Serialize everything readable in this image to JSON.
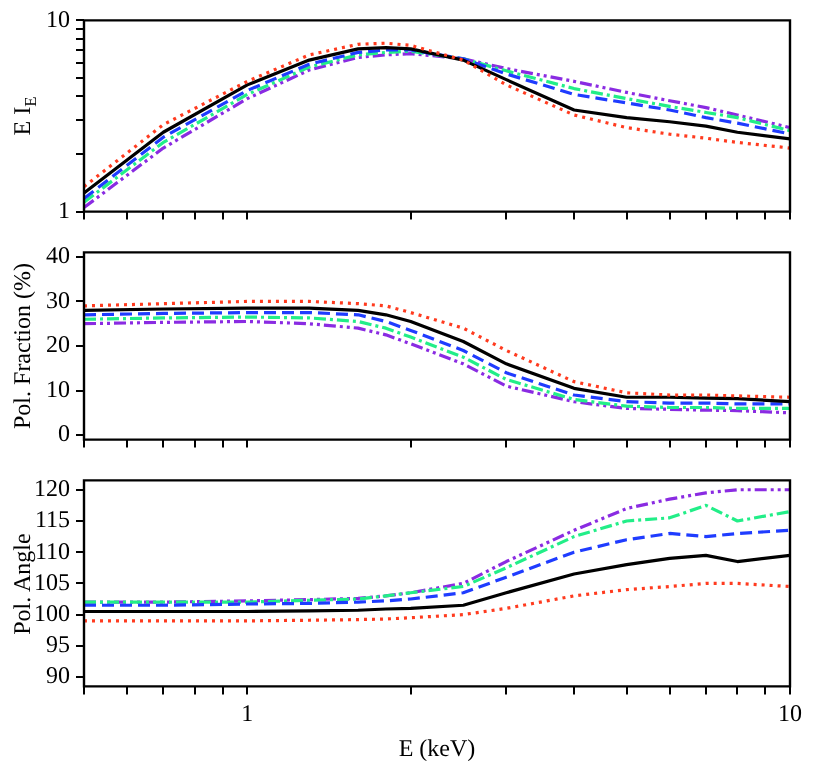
{
  "chart_data": [
    {
      "type": "line",
      "ylabel": "E I$_{E}$",
      "log": "xy",
      "tick_labels": "y",
      "x": [
        0.5,
        0.7,
        1,
        1.3,
        1.6,
        1.8,
        2,
        2.5,
        3,
        4,
        5,
        6,
        7,
        8,
        10
      ],
      "xlim": [
        0.5,
        10
      ],
      "xticks": [
        {
          "value": 0.5,
          "label": null
        },
        {
          "value": 0.6,
          "label": null
        },
        {
          "value": 0.7,
          "label": null
        },
        {
          "value": 0.8,
          "label": null
        },
        {
          "value": 0.9,
          "label": null
        },
        {
          "value": 1,
          "label": null
        },
        {
          "value": 2,
          "label": null
        },
        {
          "value": 3,
          "label": null
        },
        {
          "value": 4,
          "label": null
        },
        {
          "value": 5,
          "label": null
        },
        {
          "value": 6,
          "label": null
        },
        {
          "value": 7,
          "label": null
        },
        {
          "value": 8,
          "label": null
        },
        {
          "value": 9,
          "label": null
        },
        {
          "value": 10,
          "label": null
        }
      ],
      "ylim": [
        1,
        10
      ],
      "yticks": [
        1,
        {
          "value": 2,
          "label": null
        },
        {
          "value": 3,
          "label": null
        },
        {
          "value": 4,
          "label": null
        },
        {
          "value": 5,
          "label": null
        },
        {
          "value": 6,
          "label": null
        },
        {
          "value": 7,
          "label": null
        },
        {
          "value": 8,
          "label": null
        },
        {
          "value": 9,
          "label": null
        },
        10
      ],
      "series": [
        {
          "color": "#ff3b1f",
          "line_style": "dotted",
          "values": [
            1.35,
            2.85,
            4.8,
            6.6,
            7.5,
            7.6,
            7.4,
            6.2,
            4.6,
            3.2,
            2.75,
            2.54,
            2.42,
            2.3,
            2.15
          ]
        },
        {
          "color": "#000000",
          "line_style": "solid",
          "values": [
            1.25,
            2.6,
            4.6,
            6.2,
            7.1,
            7.2,
            7.1,
            6.2,
            4.9,
            3.4,
            3.1,
            2.95,
            2.8,
            2.6,
            2.4
          ]
        },
        {
          "color": "#1f3cff",
          "line_style": "dashed",
          "values": [
            1.17,
            2.45,
            4.3,
            5.9,
            6.8,
            7.0,
            7.0,
            6.3,
            5.25,
            4.1,
            3.7,
            3.4,
            3.1,
            2.9,
            2.55
          ]
        },
        {
          "color": "#22ee88",
          "line_style": "dashdot",
          "values": [
            1.12,
            2.3,
            4.1,
            5.7,
            6.6,
            6.8,
            6.9,
            6.3,
            5.45,
            4.4,
            3.9,
            3.55,
            3.3,
            3.1,
            2.65
          ]
        },
        {
          "color": "#8a2be2",
          "line_style": "dashdotdot",
          "values": [
            1.05,
            2.15,
            3.9,
            5.5,
            6.4,
            6.6,
            6.7,
            6.3,
            5.6,
            4.8,
            4.2,
            3.8,
            3.5,
            3.2,
            2.75
          ]
        }
      ]
    },
    {
      "type": "line",
      "ylabel": "Pol. Fraction (%)",
      "log": "x",
      "tick_labels": "y",
      "x": [
        0.5,
        0.7,
        1,
        1.3,
        1.6,
        1.8,
        2,
        2.5,
        3,
        4,
        5,
        6,
        7,
        8,
        10
      ],
      "xlim": [
        0.5,
        10
      ],
      "xticks": [
        {
          "value": 0.5,
          "label": null
        },
        {
          "value": 0.6,
          "label": null
        },
        {
          "value": 0.7,
          "label": null
        },
        {
          "value": 0.8,
          "label": null
        },
        {
          "value": 0.9,
          "label": null
        },
        {
          "value": 1,
          "label": null
        },
        {
          "value": 2,
          "label": null
        },
        {
          "value": 3,
          "label": null
        },
        {
          "value": 4,
          "label": null
        },
        {
          "value": 5,
          "label": null
        },
        {
          "value": 6,
          "label": null
        },
        {
          "value": 7,
          "label": null
        },
        {
          "value": 8,
          "label": null
        },
        {
          "value": 9,
          "label": null
        },
        {
          "value": 10,
          "label": null
        }
      ],
      "ylim": [
        -1,
        41
      ],
      "yticks": [
        0,
        10,
        20,
        30,
        40
      ],
      "series": [
        {
          "color": "#ff3b1f",
          "line_style": "dotted",
          "values": [
            29,
            29.5,
            30,
            30,
            29.5,
            29,
            27.5,
            24,
            19,
            12,
            9.5,
            9,
            9,
            8.8,
            8.5
          ]
        },
        {
          "color": "#000000",
          "line_style": "solid",
          "values": [
            28,
            28.3,
            28.5,
            28.5,
            28,
            27,
            25.5,
            21,
            16,
            10.5,
            8.5,
            8.5,
            8.3,
            8.2,
            7.5
          ]
        },
        {
          "color": "#1f3cff",
          "line_style": "dashed",
          "values": [
            27,
            27.3,
            27.5,
            27.5,
            27,
            25.5,
            23.5,
            19,
            14,
            9,
            7.5,
            7.2,
            7.2,
            7,
            7
          ]
        },
        {
          "color": "#22ee88",
          "line_style": "dashdot",
          "values": [
            26,
            26.3,
            26.5,
            26.3,
            25.5,
            24,
            22,
            17.5,
            12.5,
            8,
            6.5,
            6.2,
            6.2,
            6,
            6
          ]
        },
        {
          "color": "#8a2be2",
          "line_style": "dashdotdot",
          "values": [
            25,
            25.3,
            25.5,
            25,
            24,
            22.5,
            20.5,
            16,
            11,
            7.5,
            6,
            5.8,
            5.6,
            5.5,
            5
          ]
        }
      ]
    },
    {
      "type": "line",
      "ylabel": "Pol. Angle",
      "xlabel": "E (keV)",
      "log": "x",
      "x": [
        0.5,
        0.7,
        1,
        1.3,
        1.6,
        1.8,
        2,
        2.5,
        3,
        4,
        5,
        6,
        7,
        8,
        10
      ],
      "xlim": [
        0.5,
        10
      ],
      "xticks": [
        {
          "value": 0.5,
          "label": null
        },
        {
          "value": 0.6,
          "label": null
        },
        {
          "value": 0.7,
          "label": null
        },
        {
          "value": 0.8,
          "label": null
        },
        {
          "value": 0.9,
          "label": null
        },
        1,
        {
          "value": 2,
          "label": null
        },
        {
          "value": 3,
          "label": null
        },
        {
          "value": 4,
          "label": null
        },
        {
          "value": 5,
          "label": null
        },
        {
          "value": 6,
          "label": null
        },
        {
          "value": 7,
          "label": null
        },
        {
          "value": 8,
          "label": null
        },
        {
          "value": 9,
          "label": null
        },
        10
      ],
      "ylim": [
        88.5,
        121.5
      ],
      "yticks": [
        90,
        95,
        100,
        105,
        110,
        115,
        120
      ],
      "series": [
        {
          "color": "#ff3b1f",
          "line_style": "dotted",
          "values": [
            99,
            99,
            99,
            99.1,
            99.2,
            99.3,
            99.5,
            100,
            101,
            103,
            104,
            104.5,
            105,
            105,
            104.5
          ]
        },
        {
          "color": "#000000",
          "line_style": "solid",
          "values": [
            100.5,
            100.5,
            100.5,
            100.6,
            100.7,
            100.9,
            101,
            101.5,
            103.5,
            106.5,
            108,
            109,
            109.5,
            108.5,
            109.5
          ]
        },
        {
          "color": "#1f3cff",
          "line_style": "dashed",
          "values": [
            101.5,
            101.5,
            101.7,
            101.8,
            102,
            102.2,
            102.5,
            103.5,
            106,
            110,
            112,
            113,
            112.5,
            113,
            113.5
          ]
        },
        {
          "color": "#22ee88",
          "line_style": "dashdot",
          "values": [
            102,
            102,
            102,
            102.3,
            102.5,
            103,
            103.5,
            104.5,
            107.5,
            112.5,
            115,
            115.5,
            117.5,
            115,
            116.5
          ]
        },
        {
          "color": "#8a2be2",
          "line_style": "dashdotdot",
          "values": [
            102,
            102,
            102.2,
            102.4,
            102.6,
            103,
            103.5,
            105,
            108.5,
            113.5,
            117,
            118.5,
            119.5,
            120,
            120
          ]
        }
      ]
    }
  ]
}
